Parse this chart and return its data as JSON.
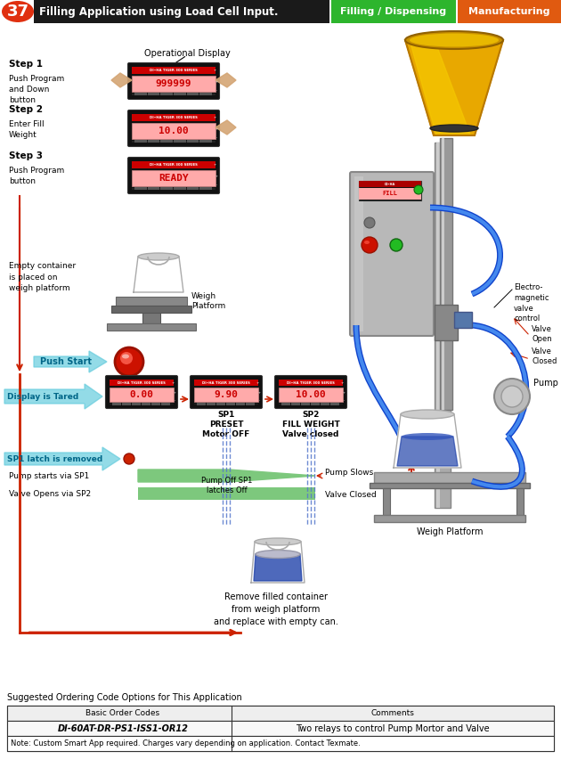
{
  "title_number": "37",
  "title_text": "Filling Application using Load Cell Input.",
  "tag1_text": "Filling / Dispensing",
  "tag2_text": "Manufacturing",
  "title_bg": "#1a1a1a",
  "tag1_bg": "#2db52d",
  "tag2_bg": "#e05a10",
  "title_fg": "#ffffff",
  "tag_fg": "#ffffff",
  "number_bg": "#e03010",
  "step1_label": "Step 1",
  "step1_desc": "Push Program\nand Down\nbutton",
  "step2_label": "Step 2",
  "step2_desc": "Enter Fill\nWeight",
  "step3_label": "Step 3",
  "step3_desc": "Push Program\nbutton",
  "op_display_label": "Operational Display",
  "empty_container_text": "Empty container\nis placed on\nweigh platform",
  "weigh_platform_label": "Weigh\nPlatform",
  "push_start_text": "Push Start",
  "display_tared_text": "Display is Tared",
  "sp1_label": "SP1\nPRESET\nMotor OFF",
  "sp2_label": "SP2\nFILL WEIGHT\nValve closed",
  "sp1_latch_text": "SP1 latch is removed",
  "pump_starts_text": "Pump starts via SP1",
  "valve_opens_text": "Valve Opens via SP2",
  "pump_off_text": "Pump Off SP1\nlatches Off",
  "pump_slows_text": "Pump Slows",
  "valve_closed_text": "Valve Closed",
  "remove_text": "Remove filled container\nfrom weigh platform\nand replace with empty can.",
  "electromagnetic_text": "Electro-\nmagnetic\nvalve\ncontrol",
  "valve_open_text": "Valve\nOpen",
  "valve_closed2_text": "Valve\nClosed",
  "pump_label": "Pump",
  "weigh_platform2_label": "Weigh Platform",
  "ordering_title": "Suggested Ordering Code Options for This Application",
  "col1_header": "Basic Order Codes",
  "col2_header": "Comments",
  "order_code": "DI-60AT-DR-PS1-ISS1-OR12",
  "order_comment": "Two relays to control Pump Mortor and Valve",
  "note_text": "Note: Custom Smart App required. Charges vary depending on application. Contact Texmate.",
  "bg_color": "#ffffff",
  "green_bar_color": "#7dc87d",
  "green_bar_color2": "#a8d8a8",
  "blue_dashed_color": "#5577cc",
  "red_arrow_color": "#cc2200",
  "cyan_arrow_color": "#66ccdd",
  "display_segment": "#ff3300",
  "display_bg_pink": "#ffaaaa"
}
